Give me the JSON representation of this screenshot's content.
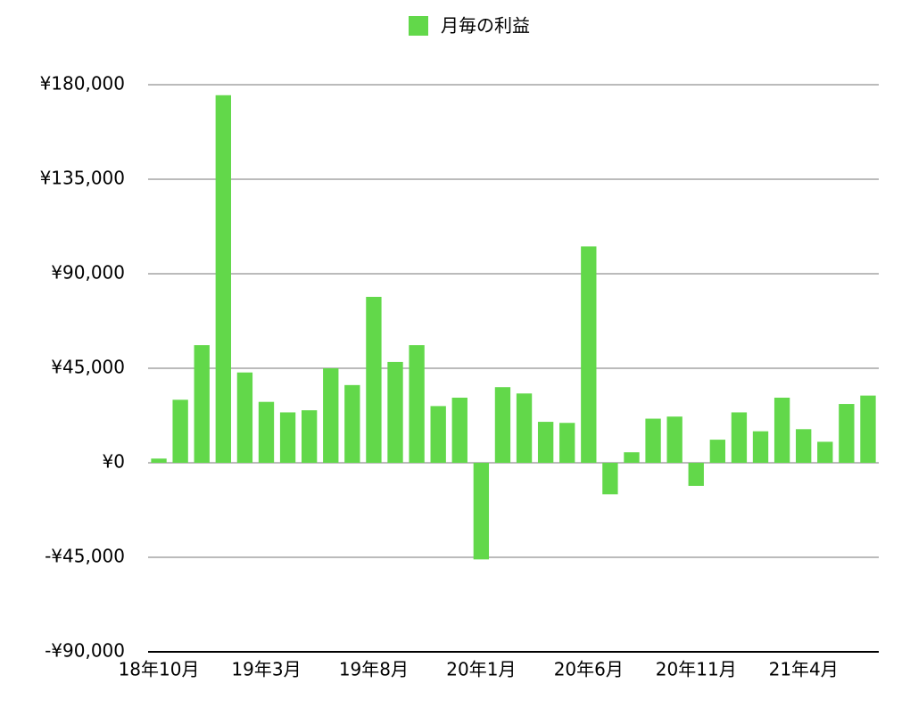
{
  "chart_data": {
    "type": "bar",
    "legend_name": "月毎の利益",
    "color": "#62d84a",
    "categories": [
      "18年10月",
      null,
      null,
      null,
      null,
      "19年3月",
      null,
      null,
      null,
      null,
      "19年8月",
      null,
      null,
      null,
      null,
      "20年1月",
      null,
      null,
      null,
      null,
      "20年6月",
      null,
      null,
      null,
      null,
      "20年11月",
      null,
      null,
      null,
      null,
      "21年4月",
      null,
      null,
      null
    ],
    "values": [
      2000,
      30000,
      56000,
      175000,
      43000,
      29000,
      24000,
      25000,
      45000,
      37000,
      79000,
      48000,
      56000,
      27000,
      31000,
      -46000,
      36000,
      33000,
      19500,
      19000,
      103000,
      -15000,
      5000,
      21000,
      22000,
      -11000,
      11000,
      24000,
      15000,
      31000,
      16000,
      10000,
      28000,
      32000
    ],
    "ylim": [
      -90000,
      180000
    ],
    "yticks": [
      {
        "value": -90000,
        "label": "-¥90,000"
      },
      {
        "value": -45000,
        "label": "-¥45,000"
      },
      {
        "value": 0,
        "label": "¥0"
      },
      {
        "value": 45000,
        "label": "¥45,000"
      },
      {
        "value": 90000,
        "label": "¥90,000"
      },
      {
        "value": 135000,
        "label": "¥135,000"
      },
      {
        "value": 180000,
        "label": "¥180,000"
      }
    ],
    "grid": true,
    "legend_position": "top"
  }
}
